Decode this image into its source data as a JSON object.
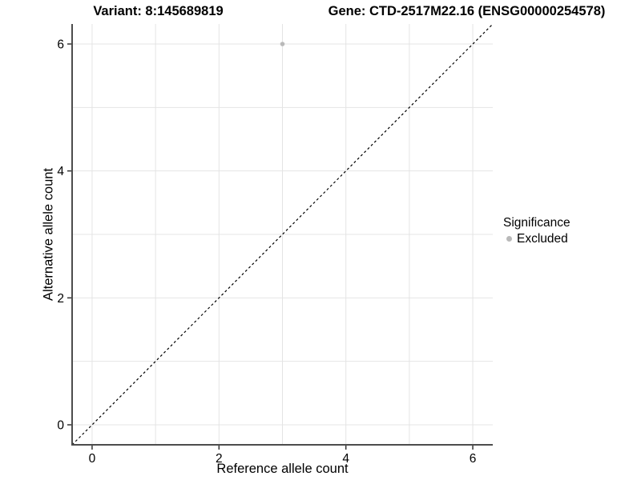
{
  "titles": {
    "variant": "Variant: 8:145689819",
    "gene": "Gene: CTD-2517M22.16 (ENSG00000254578)"
  },
  "axes": {
    "x": {
      "label": "Reference allele count",
      "tick_labels": [
        "0",
        "2",
        "4",
        "6"
      ]
    },
    "y": {
      "label": "Alternative allele count",
      "tick_labels": [
        "0",
        "2",
        "4",
        "6"
      ]
    }
  },
  "legend": {
    "title": "Significance",
    "items": [
      {
        "label": "Excluded",
        "color": "#b9b9b9"
      }
    ]
  },
  "chart_data": {
    "type": "scatter",
    "title": "Variant: 8:145689819 / Gene: CTD-2517M22.16 (ENSG00000254578)",
    "xlabel": "Reference allele count",
    "ylabel": "Alternative allele count",
    "xlim": [
      -0.315,
      6.315
    ],
    "ylim": [
      -0.315,
      6.315
    ],
    "xticks": [
      0,
      2,
      4,
      6
    ],
    "yticks": [
      0,
      2,
      4,
      6
    ],
    "gridlines": [
      0,
      1,
      2,
      3,
      4,
      5,
      6
    ],
    "grid": "on",
    "legend_position": "right",
    "series": [
      {
        "name": "Excluded",
        "color": "#b9b9b9",
        "points": [
          {
            "x": 3,
            "y": 6
          }
        ]
      }
    ],
    "reference_line": {
      "type": "identity",
      "style": "dashed",
      "from": -0.315,
      "to": 6.315
    }
  },
  "colors": {
    "background": "#ffffff",
    "grid": "#e4e4e4",
    "axis_line": "#4d4d4d",
    "tick": "#333333",
    "tick_label": "#000000",
    "dash_line": "#000000",
    "point": "#b9b9b9"
  }
}
